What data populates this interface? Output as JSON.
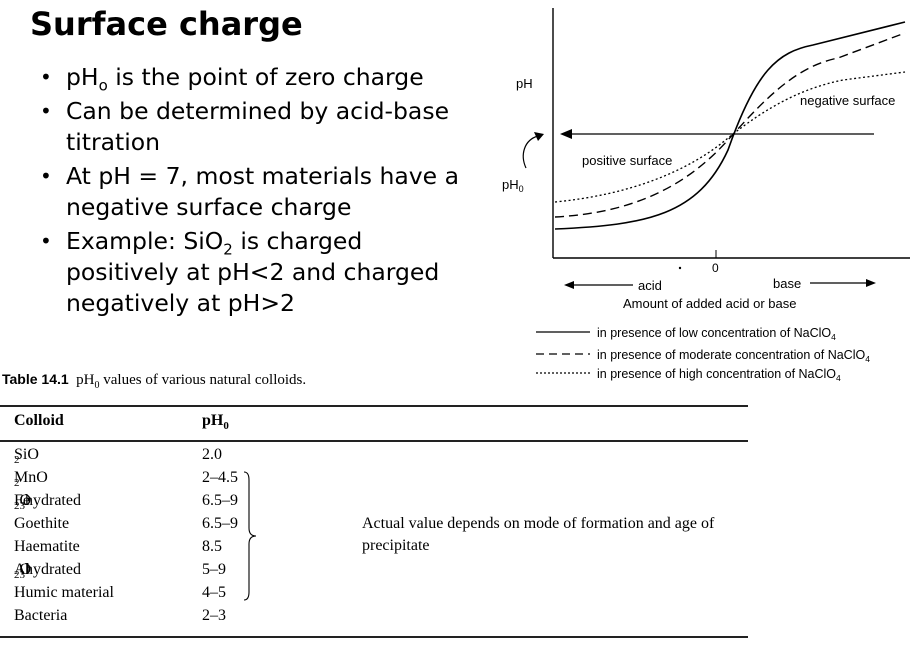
{
  "slide": {
    "title": "Surface charge",
    "bullets": [
      {
        "pre": "pH",
        "sub": "o",
        "post": " is the point of zero charge"
      },
      {
        "pre": "Can be determined by acid-base titration",
        "sub": "",
        "post": ""
      },
      {
        "pre": "At pH = 7, most materials have a negative surface charge",
        "sub": "",
        "post": ""
      },
      {
        "pre": "Example: SiO",
        "sub": "2",
        "post": " is charged positively at pH<2 and charged negatively at pH>2"
      }
    ]
  },
  "figure": {
    "y_label": "pH",
    "pzc_label": "pH",
    "pzc_sub": "0",
    "positive_label": "positive surface",
    "negative_label": "negative surface",
    "zero_label": "0",
    "acid_label": "acid",
    "base_label": "base",
    "x_label": "Amount of added acid or base",
    "legend": [
      {
        "style": "solid",
        "text": "in presence of low concentration of NaClO",
        "sub": "4"
      },
      {
        "style": "dashed",
        "text": "in presence of moderate concentration of NaClO",
        "sub": "4"
      },
      {
        "style": "dotted",
        "text": "in presence of high concentration of NaClO",
        "sub": "4"
      }
    ]
  },
  "table": {
    "caption_number": "Table 14.1",
    "caption_text": "values of various natural colloids.",
    "caption_ph": "pH",
    "caption_ph_sub": "0",
    "col_colloid": "Colloid",
    "col_ph": "pH",
    "col_ph_sub": "0",
    "note": "Actual value depends on mode of formation and age of precipitate",
    "rows": [
      {
        "pre": "SiO",
        "sub": "2",
        "post": "",
        "ph": "2.0"
      },
      {
        "pre": "MnO",
        "sub": "2",
        "post": "",
        "ph": "2–4.5"
      },
      {
        "pre": "Fe",
        "sub": "2",
        "post": "O",
        "sub2": "3",
        "post2": " hydrated",
        "ph": "6.5–9"
      },
      {
        "pre": "Goethite",
        "sub": "",
        "post": "",
        "ph": "6.5–9"
      },
      {
        "pre": "Haematite",
        "sub": "",
        "post": "",
        "ph": "8.5"
      },
      {
        "pre": "Al",
        "sub": "2",
        "post": "O",
        "sub2": "3",
        "post2": " hydrated",
        "ph": "5–9"
      },
      {
        "pre": "Humic material",
        "sub": "",
        "post": "",
        "ph": "4–5"
      },
      {
        "pre": "Bacteria",
        "sub": "",
        "post": "",
        "ph": "2–3"
      }
    ]
  },
  "chart_data": {
    "type": "line",
    "xlabel": "Amount of added acid or base",
    "ylabel": "pH",
    "series": [
      {
        "name": "in presence of low concentration of NaClO4",
        "style": "solid"
      },
      {
        "name": "in presence of moderate concentration of NaClO4",
        "style": "dashed"
      },
      {
        "name": "in presence of high concentration of NaClO4",
        "style": "dotted"
      }
    ],
    "annotations": [
      "pH0",
      "positive surface",
      "negative surface",
      "acid",
      "base",
      "0"
    ]
  }
}
